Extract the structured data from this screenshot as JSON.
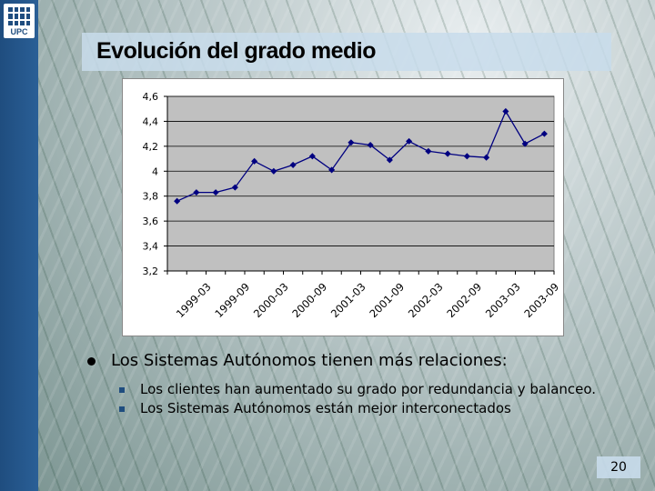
{
  "slide": {
    "title": "Evolución del grado medio",
    "logo_text": "UPC",
    "page_number": "20"
  },
  "bullets": {
    "main": "Los Sistemas Autónomos tienen más relaciones:",
    "sub": [
      "Los clientes han aumentado su grado por redundancia y balanceo.",
      "Los Sistemas Autónomos están mejor interconectados"
    ]
  },
  "colors": {
    "plot_background": "#c0c0c0",
    "series_line": "#000080",
    "left_strip": "#1f4d7f"
  },
  "chart_data": {
    "type": "line",
    "title": "",
    "xlabel": "",
    "ylabel": "",
    "ylim": [
      3.2,
      4.6
    ],
    "yticks": [
      "3,2",
      "3,4",
      "3,6",
      "3,8",
      "4",
      "4,2",
      "4,4",
      "4,6"
    ],
    "ytick_values": [
      3.2,
      3.4,
      3.6,
      3.8,
      4.0,
      4.2,
      4.4,
      4.6
    ],
    "xtick_labels": [
      "1999-03",
      "1999-09",
      "2000-03",
      "2000-09",
      "2001-03",
      "2001-09",
      "2002-03",
      "2002-09",
      "2003-03",
      "2003-09"
    ],
    "grid": true,
    "series": [
      {
        "values": [
          3.76,
          3.83,
          3.83,
          3.87,
          4.08,
          4.0,
          4.05,
          4.12,
          4.01,
          4.23,
          4.21,
          4.09,
          4.24,
          4.16,
          4.14,
          4.12,
          4.11,
          4.48,
          4.22,
          4.3
        ]
      }
    ]
  }
}
